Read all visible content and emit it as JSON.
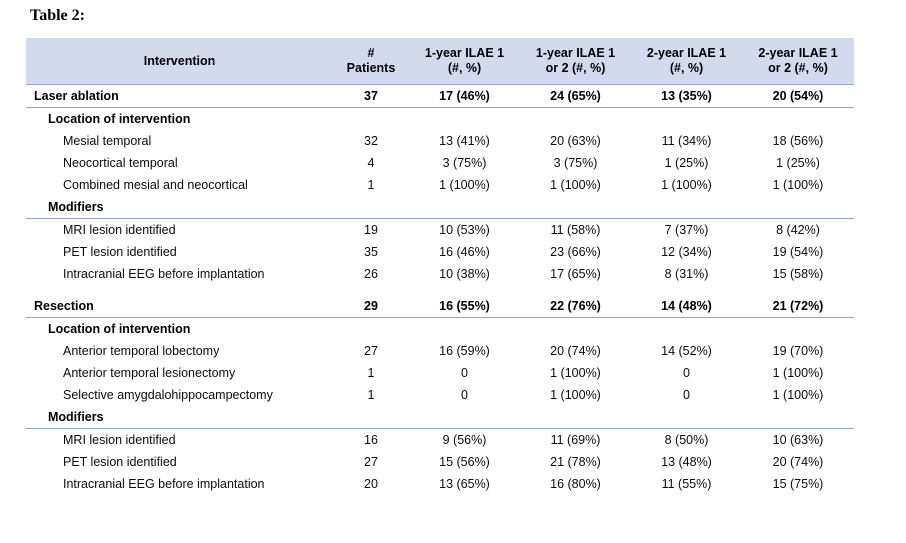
{
  "page": {
    "title": "Table 2:"
  },
  "colors": {
    "header_bg": "#d4daee",
    "rule": "#8da6d2",
    "text": "#000000"
  },
  "table": {
    "columns": [
      {
        "label": "Intervention"
      },
      {
        "label": "#\nPatients"
      },
      {
        "label": "1-year ILAE 1\n(#, %)"
      },
      {
        "label": "1-year ILAE 1\nor 2 (#, %)"
      },
      {
        "label": "2-year ILAE 1\n(#, %)"
      },
      {
        "label": "2-year ILAE 1\nor 2 (#, %)"
      }
    ],
    "rows": [
      {
        "type": "section",
        "label": "Laser ablation",
        "values": [
          "37",
          "17 (46%)",
          "24 (65%)",
          "13 (35%)",
          "20 (54%)"
        ]
      },
      {
        "type": "subheader",
        "label": "Location of intervention",
        "underline": false
      },
      {
        "type": "item",
        "label": "Mesial temporal",
        "values": [
          "32",
          "13 (41%)",
          "20 (63%)",
          "11 (34%)",
          "18 (56%)"
        ]
      },
      {
        "type": "item",
        "label": "Neocortical temporal",
        "values": [
          "4",
          "3 (75%)",
          "3 (75%)",
          "1 (25%)",
          "1 (25%)"
        ]
      },
      {
        "type": "item",
        "label": "Combined mesial and neocortical",
        "values": [
          "1",
          "1 (100%)",
          "1 (100%)",
          "1 (100%)",
          "1 (100%)"
        ]
      },
      {
        "type": "subheader",
        "label": "Modifiers",
        "underline": true
      },
      {
        "type": "item",
        "label": "MRI lesion identified",
        "values": [
          "19",
          "10 (53%)",
          "11 (58%)",
          "7 (37%)",
          "8 (42%)"
        ]
      },
      {
        "type": "item",
        "label": "PET lesion identified",
        "values": [
          "35",
          "16 (46%)",
          "23 (66%)",
          "12 (34%)",
          "19 (54%)"
        ]
      },
      {
        "type": "item",
        "label": "Intracranial EEG before implantation",
        "values": [
          "26",
          "10 (38%)",
          "17 (65%)",
          "8 (31%)",
          "15 (58%)"
        ]
      },
      {
        "type": "spacer"
      },
      {
        "type": "section",
        "label": "Resection",
        "values": [
          "29",
          "16 (55%)",
          "22 (76%)",
          "14 (48%)",
          "21 (72%)"
        ]
      },
      {
        "type": "subheader",
        "label": "Location of intervention",
        "underline": false
      },
      {
        "type": "item",
        "label": "Anterior temporal lobectomy",
        "values": [
          "27",
          "16 (59%)",
          "20 (74%)",
          "14 (52%)",
          "19 (70%)"
        ]
      },
      {
        "type": "item",
        "label": "Anterior temporal lesionectomy",
        "values": [
          "1",
          "0",
          "1 (100%)",
          "0",
          "1 (100%)"
        ]
      },
      {
        "type": "item",
        "label": "Selective amygdalohippocampectomy",
        "values": [
          "1",
          "0",
          "1 (100%)",
          "0",
          "1 (100%)"
        ]
      },
      {
        "type": "subheader",
        "label": "Modifiers",
        "underline": true
      },
      {
        "type": "item",
        "label": "MRI lesion identified",
        "values": [
          "16",
          "9 (56%)",
          "11 (69%)",
          "8 (50%)",
          "10 (63%)"
        ]
      },
      {
        "type": "item",
        "label": "PET lesion identified",
        "values": [
          "27",
          "15 (56%)",
          "21 (78%)",
          "13 (48%)",
          "20 (74%)"
        ]
      },
      {
        "type": "item",
        "label": "Intracranial EEG before implantation",
        "values": [
          "20",
          "13 (65%)",
          "16 (80%)",
          "11 (55%)",
          "15 (75%)"
        ]
      }
    ]
  }
}
